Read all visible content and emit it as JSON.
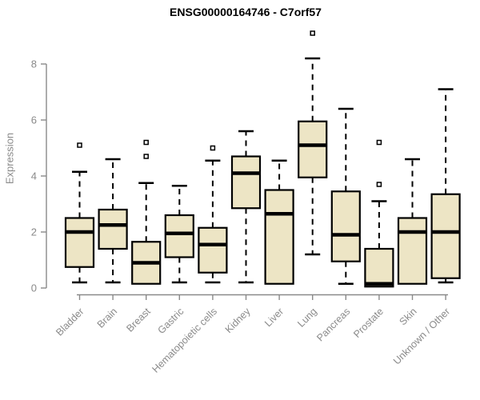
{
  "chart_data": {
    "type": "boxplot",
    "title": "ENSG00000164746 - C7orf57",
    "ylabel": "Expression",
    "ylim": [
      0,
      8
    ],
    "yticks": [
      0,
      2,
      4,
      6,
      8
    ],
    "grid": false,
    "legend": "none",
    "categories": [
      "Bladder",
      "Brain",
      "Breast",
      "Gastric",
      "Hematopoietic cells",
      "Kidney",
      "Liver",
      "Lung",
      "Pancreas",
      "Prostate",
      "Skin",
      "Unknown / Other"
    ],
    "boxes": [
      {
        "category": "Bladder",
        "whisker_low": 0.2,
        "q1": 0.75,
        "median": 2.0,
        "q3": 2.5,
        "whisker_high": 4.15,
        "outliers": [
          5.1
        ]
      },
      {
        "category": "Brain",
        "whisker_low": 0.2,
        "q1": 1.4,
        "median": 2.25,
        "q3": 2.8,
        "whisker_high": 4.6,
        "outliers": []
      },
      {
        "category": "Breast",
        "whisker_low": 0.15,
        "q1": 0.15,
        "median": 0.9,
        "q3": 1.65,
        "whisker_high": 3.75,
        "outliers": [
          4.7,
          5.2
        ]
      },
      {
        "category": "Gastric",
        "whisker_low": 0.2,
        "q1": 1.1,
        "median": 1.95,
        "q3": 2.6,
        "whisker_high": 3.65,
        "outliers": []
      },
      {
        "category": "Hematopoietic cells",
        "whisker_low": 0.2,
        "q1": 0.55,
        "median": 1.55,
        "q3": 2.15,
        "whisker_high": 4.55,
        "outliers": [
          5.0
        ]
      },
      {
        "category": "Kidney",
        "whisker_low": 0.2,
        "q1": 2.85,
        "median": 4.1,
        "q3": 4.7,
        "whisker_high": 5.6,
        "outliers": []
      },
      {
        "category": "Liver",
        "whisker_low": 0.15,
        "q1": 0.15,
        "median": 2.65,
        "q3": 3.5,
        "whisker_high": 4.55,
        "outliers": []
      },
      {
        "category": "Lung",
        "whisker_low": 1.2,
        "q1": 3.95,
        "median": 5.1,
        "q3": 5.95,
        "whisker_high": 8.2,
        "outliers": [
          9.1
        ]
      },
      {
        "category": "Pancreas",
        "whisker_low": 0.15,
        "q1": 0.95,
        "median": 1.9,
        "q3": 3.45,
        "whisker_high": 6.4,
        "outliers": []
      },
      {
        "category": "Prostate",
        "whisker_low": 0.05,
        "q1": 0.05,
        "median": 0.15,
        "q3": 1.4,
        "whisker_high": 3.1,
        "outliers": [
          3.7,
          5.2
        ]
      },
      {
        "category": "Skin",
        "whisker_low": 0.15,
        "q1": 0.15,
        "median": 2.0,
        "q3": 2.5,
        "whisker_high": 4.6,
        "outliers": []
      },
      {
        "category": "Unknown / Other",
        "whisker_low": 0.2,
        "q1": 0.35,
        "median": 2.0,
        "q3": 3.35,
        "whisker_high": 7.1,
        "outliers": []
      }
    ],
    "colors": {
      "background": "#ffffff",
      "box_fill": "#EDE5C5",
      "box_stroke": "#000000",
      "median": "#000000",
      "whisker": "#000000",
      "axis": "#8a8a8a",
      "tick_label": "#8a8a8a",
      "title": "#000000"
    }
  }
}
